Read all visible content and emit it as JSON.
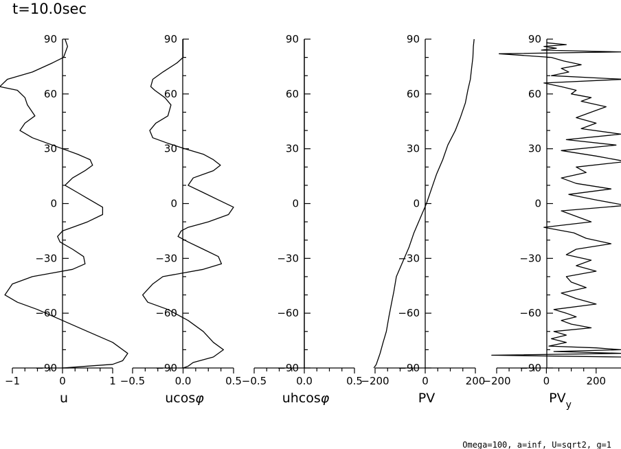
{
  "title": "t=10.0sec",
  "footer": "Omega=100, a=inf, U=sqrt2, g=1",
  "chart_data": [
    {
      "type": "line",
      "name": "u",
      "xlabel_parts": [
        {
          "t": "u"
        }
      ],
      "ylim": [
        -90,
        90
      ],
      "xlim": [
        -1,
        1
      ],
      "x_ticks": [
        -1,
        0,
        1
      ],
      "x_tick_labels": [
        "−1",
        "0",
        "1"
      ],
      "y_ticks": [
        90,
        60,
        30,
        0,
        -30,
        -60,
        -90
      ],
      "y_tick_labels": [
        "90",
        "60",
        "30",
        "0",
        "−30",
        "−60",
        "−90"
      ],
      "x": [
        0.05,
        0.1,
        0.02,
        -0.2,
        -0.6,
        -1.1,
        -1.25,
        -0.9,
        -0.75,
        -0.7,
        -0.55,
        -0.75,
        -0.85,
        -0.6,
        -0.3,
        0.0,
        0.3,
        0.55,
        0.6,
        0.45,
        0.2,
        0.05,
        0.3,
        0.55,
        0.8,
        0.8,
        0.5,
        0.2,
        0.0,
        -0.1,
        -0.05,
        0.2,
        0.42,
        0.45,
        0.2,
        -0.2,
        -0.6,
        -1.0,
        -1.15,
        -0.9,
        -0.5,
        0.0,
        0.5,
        1.0,
        1.3,
        1.2,
        1.0,
        0.5,
        0.0
      ],
      "y": [
        90,
        86,
        80,
        77,
        72,
        68,
        64,
        62,
        58,
        54,
        48,
        44,
        40,
        36,
        33,
        30,
        27,
        24,
        21,
        18,
        14,
        10,
        6,
        2,
        -2,
        -6,
        -10,
        -13,
        -15,
        -18,
        -21,
        -25,
        -29,
        -33,
        -36,
        -38,
        -40,
        -44,
        -50,
        -54,
        -58,
        -64,
        -70,
        -76,
        -82,
        -86,
        -88,
        -89,
        -90
      ]
    },
    {
      "type": "line",
      "name": "ucosphi",
      "xlabel_parts": [
        {
          "t": "ucos"
        },
        {
          "t": "φ",
          "italic": true
        }
      ],
      "ylim": [
        -90,
        90
      ],
      "xlim": [
        -0.5,
        0.5
      ],
      "x_ticks": [
        -0.5,
        0,
        0.5
      ],
      "x_tick_labels": [
        "−0.5",
        "0.0",
        "0.5"
      ],
      "y_ticks": [
        90,
        60,
        30,
        0,
        -30,
        -60,
        -90
      ],
      "y_tick_labels": [
        "90",
        "60",
        "30",
        "0",
        "−30",
        "−60",
        "−90"
      ],
      "x": [
        0.0,
        0.0,
        0.0,
        -0.06,
        -0.2,
        -0.3,
        -0.32,
        -0.28,
        -0.18,
        -0.12,
        -0.15,
        -0.27,
        -0.33,
        -0.3,
        -0.15,
        0.02,
        0.2,
        0.3,
        0.37,
        0.3,
        0.1,
        0.05,
        0.2,
        0.35,
        0.5,
        0.45,
        0.25,
        0.05,
        -0.02,
        -0.05,
        0.05,
        0.2,
        0.35,
        0.38,
        0.2,
        0.0,
        -0.2,
        -0.3,
        -0.4,
        -0.35,
        -0.15,
        0.05,
        0.2,
        0.3,
        0.4,
        0.3,
        0.1,
        0.05,
        0.0
      ],
      "y": [
        90,
        86,
        80,
        77,
        72,
        68,
        64,
        62,
        58,
        54,
        48,
        44,
        40,
        36,
        33,
        30,
        27,
        24,
        21,
        18,
        14,
        10,
        6,
        2,
        -2,
        -6,
        -10,
        -13,
        -15,
        -18,
        -21,
        -25,
        -29,
        -33,
        -36,
        -38,
        -40,
        -44,
        -50,
        -54,
        -58,
        -64,
        -70,
        -76,
        -80,
        -84,
        -87,
        -89,
        -90
      ]
    },
    {
      "type": "line",
      "name": "uhcosphi",
      "xlabel_parts": [
        {
          "t": "uhcos"
        },
        {
          "t": "φ",
          "italic": true
        }
      ],
      "ylim": [
        -90,
        90
      ],
      "xlim": [
        -0.5,
        0.5
      ],
      "x_ticks": [
        -0.5,
        0,
        0.5
      ],
      "x_tick_labels": [
        "−0.5",
        "0.0",
        "0.5"
      ],
      "y_ticks": [
        90,
        60,
        30,
        0,
        -30,
        -60,
        -90
      ],
      "y_tick_labels": [
        "90",
        "60",
        "30",
        "0",
        "−30",
        "−60",
        "−90"
      ],
      "x": [
        0,
        0
      ],
      "y": [
        90,
        -90
      ]
    },
    {
      "type": "line",
      "name": "PV",
      "xlabel_parts": [
        {
          "t": "PV"
        }
      ],
      "ylim": [
        -90,
        90
      ],
      "xlim": [
        -200,
        200
      ],
      "x_ticks": [
        -200,
        0,
        200
      ],
      "x_tick_labels": [
        "−200",
        "0",
        "200"
      ],
      "y_ticks": [
        90,
        60,
        30,
        0,
        -30,
        -60,
        -90
      ],
      "y_tick_labels": [
        "90",
        "60",
        "30",
        "0",
        "−30",
        "−60",
        "−90"
      ],
      "x": [
        195,
        192,
        190,
        185,
        180,
        170,
        160,
        140,
        120,
        90,
        70,
        45,
        25,
        5,
        -20,
        -45,
        -65,
        -90,
        -115,
        -125,
        -135,
        -145,
        -155,
        -168,
        -180,
        -185,
        -190,
        -195,
        -205
      ],
      "y": [
        90,
        86,
        80,
        74,
        68,
        62,
        55,
        47,
        40,
        32,
        24,
        16,
        8,
        0,
        -8,
        -16,
        -24,
        -32,
        -40,
        -48,
        -55,
        -62,
        -70,
        -76,
        -82,
        -84,
        -86,
        -88,
        -90
      ]
    },
    {
      "type": "line",
      "name": "PVy",
      "xlabel_parts": [
        {
          "t": "PV"
        },
        {
          "t": "y",
          "sub": true
        }
      ],
      "ylim": [
        -90,
        90
      ],
      "xlim": [
        -200,
        300
      ],
      "x_ticks": [
        -200,
        0,
        200
      ],
      "x_tick_labels": [
        "−200",
        "0",
        "200"
      ],
      "y_ticks": [
        90,
        60,
        30,
        0,
        -30,
        -60,
        -90
      ],
      "y_tick_labels": [
        "90",
        "60",
        "30",
        "0",
        "−30",
        "−60",
        "−90"
      ],
      "x": [
        0,
        80,
        -10,
        40,
        -20,
        300,
        -190,
        20,
        70,
        140,
        60,
        90,
        20,
        310,
        -10,
        60,
        120,
        100,
        180,
        140,
        240,
        180,
        120,
        200,
        140,
        300,
        80,
        280,
        60,
        200,
        320,
        120,
        160,
        60,
        120,
        260,
        90,
        200,
        320,
        60,
        120,
        180,
        -10,
        110,
        160,
        260,
        120,
        80,
        180,
        120,
        200,
        80,
        100,
        160,
        60,
        120,
        200,
        30,
        80,
        120,
        60,
        100,
        180,
        30,
        80,
        20,
        80,
        10,
        200,
        300,
        30,
        310,
        -220,
        300
      ],
      "y": [
        88,
        87,
        86,
        85,
        84,
        83,
        82,
        80,
        78,
        76,
        74,
        72,
        70,
        68,
        66,
        64,
        62,
        60,
        58,
        56,
        53,
        50,
        47,
        44,
        41,
        38,
        35,
        32,
        29,
        26,
        23,
        20,
        17,
        14,
        11,
        8,
        5,
        2,
        -1,
        -4,
        -7,
        -10,
        -13,
        -16,
        -19,
        -22,
        -25,
        -28,
        -31,
        -34,
        -37,
        -40,
        -43,
        -46,
        -49,
        -52,
        -55,
        -58,
        -60,
        -62,
        -64,
        -66,
        -68,
        -70,
        -72,
        -74,
        -76,
        -78,
        -79,
        -80,
        -81,
        -82,
        -83,
        -84
      ]
    }
  ]
}
